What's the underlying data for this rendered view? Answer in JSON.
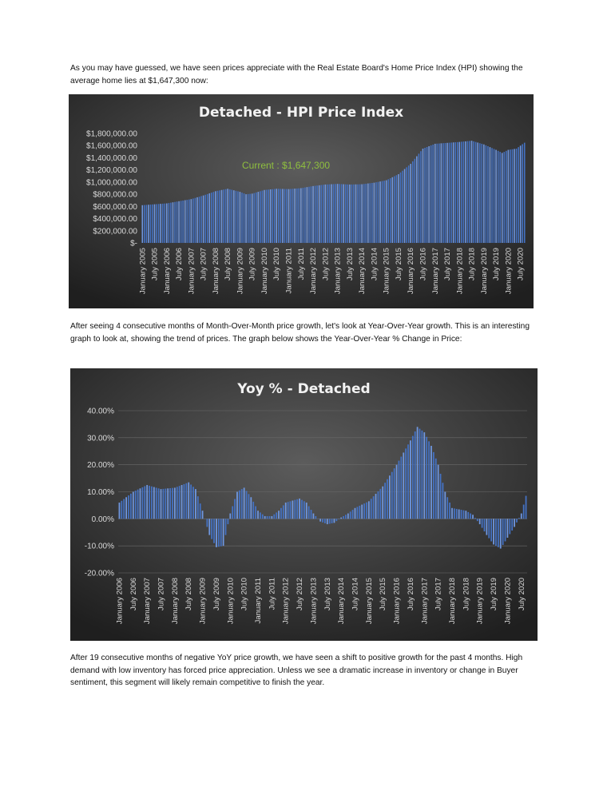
{
  "paragraphs": {
    "intro": "As you may have guessed, we have seen prices appreciate with the Real Estate Board's Home Price Index (HPI) showing the average home lies at $1,647,300 now:",
    "middle": "After seeing 4 consecutive months of Month-Over-Month price growth, let's look at Year-Over-Year growth. This is an interesting graph to look at, showing the trend of prices. The graph below shows the Year-Over-Year % Change in Price:",
    "closing": "After 19 consecutive months of negative YoY price growth, we have seen a shift to positive growth for the past 4 months. High demand with low inventory has forced price appreciation. Unless we see a dramatic increase in inventory or change in Buyer sentiment, this segment will likely remain competitive to finish the year."
  },
  "colors": {
    "bar": "#4472c4",
    "bar_highlight": "#6f97e0",
    "annotation": "#8fbf3f",
    "chart_text": "#d9d9d9",
    "title": "#f2f2f2"
  },
  "chart_data": [
    {
      "type": "bar",
      "title": "Detached  - HPI Price Index",
      "annotation": "Current : $1,647,300",
      "ylim": [
        0,
        1800000
      ],
      "yticks": [
        "$1,800,000.00",
        "$1,600,000.00",
        "$1,400,000.00",
        "$1,200,000.00",
        "$1,000,000.00",
        "$800,000.00",
        "$600,000.00",
        "$400,000.00",
        "$200,000.00",
        "$-"
      ],
      "xtick_labels": [
        "January 2005",
        "July 2005",
        "January 2006",
        "July 2006",
        "January 2007",
        "July 2007",
        "January 2008",
        "July 2008",
        "January 2009",
        "July 2009",
        "January 2010",
        "July 2010",
        "January 2011",
        "July 2011",
        "January 2012",
        "July 2012",
        "January 2013",
        "July 2013",
        "January 2014",
        "July 2014",
        "January 2015",
        "July 2015",
        "January 2016",
        "July 2016",
        "January 2017",
        "July 2017",
        "January 2018",
        "July 2018",
        "January 2019",
        "July 2019",
        "January 2020",
        "July 2020"
      ],
      "start": "January 2005",
      "end": "September 2020",
      "keypoints": [
        [
          "January 2005",
          620000
        ],
        [
          "January 2006",
          650000
        ],
        [
          "January 2007",
          720000
        ],
        [
          "July 2007",
          780000
        ],
        [
          "January 2008",
          850000
        ],
        [
          "July 2008",
          890000
        ],
        [
          "January 2009",
          840000
        ],
        [
          "April 2009",
          800000
        ],
        [
          "July 2009",
          810000
        ],
        [
          "January 2010",
          870000
        ],
        [
          "July 2010",
          890000
        ],
        [
          "January 2011",
          885000
        ],
        [
          "July 2011",
          900000
        ],
        [
          "January 2012",
          935000
        ],
        [
          "July 2012",
          960000
        ],
        [
          "January 2013",
          970000
        ],
        [
          "July 2013",
          960000
        ],
        [
          "January 2014",
          965000
        ],
        [
          "July 2014",
          990000
        ],
        [
          "January 2015",
          1030000
        ],
        [
          "July 2015",
          1130000
        ],
        [
          "January 2016",
          1300000
        ],
        [
          "July 2016",
          1550000
        ],
        [
          "January 2017",
          1630000
        ],
        [
          "July 2017",
          1645000
        ],
        [
          "January 2018",
          1660000
        ],
        [
          "July 2018",
          1680000
        ],
        [
          "January 2019",
          1620000
        ],
        [
          "July 2019",
          1530000
        ],
        [
          "October 2019",
          1480000
        ],
        [
          "January 2020",
          1530000
        ],
        [
          "May 2020",
          1550000
        ],
        [
          "September 2020",
          1647300
        ]
      ]
    },
    {
      "type": "bar",
      "title": "Yoy % - Detached",
      "ylim": [
        -20,
        40
      ],
      "yticks": [
        "40.00%",
        "30.00%",
        "20.00%",
        "10.00%",
        "0.00%",
        "-10.00%",
        "-20.00%"
      ],
      "xtick_labels": [
        "January 2006",
        "July 2006",
        "January 2007",
        "July 2007",
        "January 2008",
        "July 2008",
        "January 2009",
        "July 2009",
        "January 2010",
        "July 2010",
        "January 2011",
        "July 2011",
        "January 2012",
        "July 2012",
        "January 2013",
        "July 2013",
        "January 2014",
        "July 2014",
        "January 2015",
        "July 2015",
        "January 2016",
        "July 2016",
        "January 2017",
        "July 2017",
        "January 2018",
        "July 2018",
        "January 2019",
        "July 2019",
        "January 2020",
        "July 2020"
      ],
      "start": "January 2006",
      "end": "September 2020",
      "keypoints": [
        [
          "January 2006",
          6
        ],
        [
          "July 2006",
          10
        ],
        [
          "January 2007",
          12.5
        ],
        [
          "July 2007",
          11
        ],
        [
          "January 2008",
          11.5
        ],
        [
          "July 2008",
          13.5
        ],
        [
          "October 2008",
          11
        ],
        [
          "January 2009",
          3
        ],
        [
          "April 2009",
          -6
        ],
        [
          "July 2009",
          -10.5
        ],
        [
          "October 2009",
          -10
        ],
        [
          "January 2010",
          2
        ],
        [
          "April 2010",
          10
        ],
        [
          "July 2010",
          11.5
        ],
        [
          "October 2010",
          8
        ],
        [
          "January 2011",
          3
        ],
        [
          "April 2011",
          1
        ],
        [
          "July 2011",
          1
        ],
        [
          "October 2011",
          3
        ],
        [
          "January 2012",
          6
        ],
        [
          "July 2012",
          7.5
        ],
        [
          "October 2012",
          6
        ],
        [
          "January 2013",
          2
        ],
        [
          "April 2013",
          -1
        ],
        [
          "July 2013",
          -2
        ],
        [
          "October 2013",
          -1.5
        ],
        [
          "January 2014",
          0.5
        ],
        [
          "April 2014",
          2
        ],
        [
          "July 2014",
          4
        ],
        [
          "January 2015",
          6.5
        ],
        [
          "July 2015",
          12
        ],
        [
          "January 2016",
          20
        ],
        [
          "July 2016",
          29
        ],
        [
          "October 2016",
          34
        ],
        [
          "January 2017",
          32
        ],
        [
          "April 2017",
          27
        ],
        [
          "July 2017",
          20
        ],
        [
          "October 2017",
          10
        ],
        [
          "January 2018",
          4
        ],
        [
          "April 2018",
          3.5
        ],
        [
          "July 2018",
          3
        ],
        [
          "October 2018",
          1.5
        ],
        [
          "January 2019",
          -2
        ],
        [
          "April 2019",
          -6
        ],
        [
          "July 2019",
          -9.5
        ],
        [
          "October 2019",
          -11
        ],
        [
          "January 2020",
          -7
        ],
        [
          "April 2020",
          -3
        ],
        [
          "July 2020",
          2
        ],
        [
          "September 2020",
          8.5
        ]
      ]
    }
  ]
}
